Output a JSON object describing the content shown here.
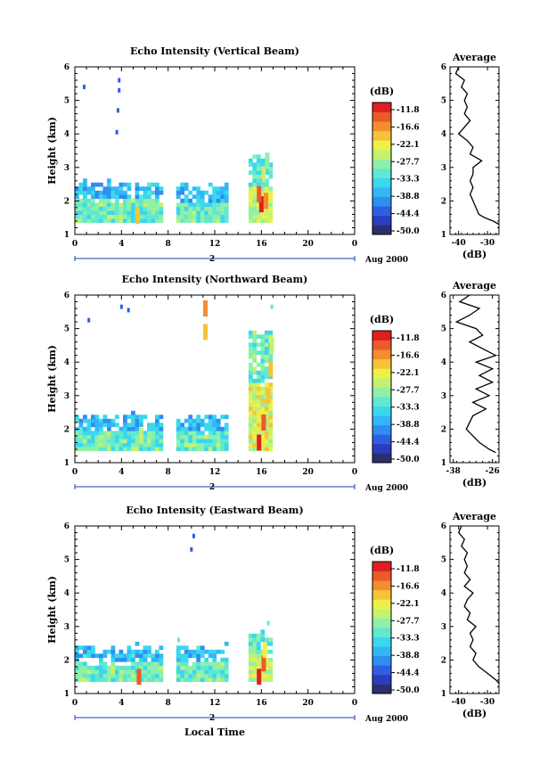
{
  "figure": {
    "xlabel": "Local Time",
    "date_label": "Aug 2000",
    "day_label": "2",
    "colorbar_unit": "(dB)",
    "avg_title": "Average",
    "avg_xlabel": "(dB)"
  },
  "chart_data": [
    {
      "type": "heatmap",
      "title": "Echo Intensity (Vertical Beam)",
      "ylabel": "Height (km)",
      "x_ticks": [
        "0",
        "4",
        "8",
        "12",
        "16",
        "20",
        "0"
      ],
      "x_range": [
        0,
        24
      ],
      "y_ticks": [
        "1",
        "2",
        "3",
        "4",
        "5",
        "6"
      ],
      "y_range": [
        1,
        6
      ],
      "colorbar_levels": [
        "-11.8",
        "-16.6",
        "-22.1",
        "-27.7",
        "-33.3",
        "-38.8",
        "-44.4",
        "-50.0"
      ],
      "colorbar_range_db": [
        -50.0,
        -11.0
      ],
      "data_blocks": [
        {
          "t": [
            0,
            7.3
          ],
          "h": [
            1.35,
            2.55
          ],
          "level_db": -33
        },
        {
          "t": [
            8.7,
            13.0
          ],
          "h": [
            1.35,
            2.5
          ],
          "level_db": -33
        },
        {
          "t": [
            14.9,
            16.8
          ],
          "h": [
            1.35,
            3.3
          ],
          "level_db": -28
        }
      ],
      "cells": [
        {
          "t": 5.4,
          "h": 1.55,
          "db": -22
        },
        {
          "t": 16.0,
          "h": 1.9,
          "db": -12
        },
        {
          "t": 15.8,
          "h": 2.2,
          "db": -14
        },
        {
          "t": 16.4,
          "h": 2.0,
          "db": -18
        },
        {
          "t": 16.2,
          "h": 2.8,
          "db": -27
        },
        {
          "t": 16.5,
          "h": 3.2,
          "db": -30
        }
      ],
      "sparse_cells": [
        {
          "t": 0.8,
          "h": 5.4,
          "db": -44
        },
        {
          "t": 3.8,
          "h": 5.6,
          "db": -44
        },
        {
          "t": 3.8,
          "h": 5.3,
          "db": -44
        },
        {
          "t": 3.7,
          "h": 4.7,
          "db": -44
        },
        {
          "t": 3.6,
          "h": 4.05,
          "db": -44
        }
      ],
      "average_profile": {
        "x_ticks": [
          "-40",
          "-30"
        ],
        "x_range": [
          -43,
          -26
        ],
        "y_ticks": [
          "1",
          "2",
          "3",
          "4",
          "5",
          "6"
        ],
        "y_range": [
          1,
          6
        ],
        "height_km": [
          1.3,
          1.4,
          1.5,
          1.6,
          1.8,
          2.0,
          2.2,
          2.4,
          2.6,
          2.8,
          3.0,
          3.2,
          3.4,
          3.6,
          3.8,
          4.0,
          4.2,
          4.4,
          4.6,
          4.8,
          5.0,
          5.2,
          5.4,
          5.6,
          5.8,
          6.0
        ],
        "db": [
          -26,
          -28,
          -31,
          -33,
          -34,
          -35,
          -36,
          -35,
          -36,
          -35,
          -35,
          -32,
          -36,
          -35,
          -37,
          -40,
          -38,
          -36,
          -38,
          -37,
          -38,
          -37,
          -39,
          -38,
          -41,
          -40
        ]
      }
    },
    {
      "type": "heatmap",
      "title": "Echo Intensity (Northward Beam)",
      "ylabel": "Height (km)",
      "x_ticks": [
        "0",
        "4",
        "8",
        "12",
        "16",
        "20",
        "0"
      ],
      "x_range": [
        0,
        24
      ],
      "y_ticks": [
        "1",
        "2",
        "3",
        "4",
        "5",
        "6"
      ],
      "y_range": [
        1,
        6
      ],
      "colorbar_levels": [
        "-11.8",
        "-16.6",
        "-22.1",
        "-27.7",
        "-33.3",
        "-38.8",
        "-44.4",
        "-50.0"
      ],
      "colorbar_range_db": [
        -50.0,
        -11.0
      ],
      "data_blocks": [
        {
          "t": [
            0,
            7.3
          ],
          "h": [
            1.35,
            2.45
          ],
          "level_db": -33
        },
        {
          "t": [
            8.7,
            13.0
          ],
          "h": [
            1.35,
            2.4
          ],
          "level_db": -33
        },
        {
          "t": [
            14.9,
            16.8
          ],
          "h": [
            1.35,
            4.9
          ],
          "level_db": -27
        }
      ],
      "cells": [
        {
          "t": 5.7,
          "h": 1.8,
          "db": -25
        },
        {
          "t": 15.8,
          "h": 1.6,
          "db": -12
        },
        {
          "t": 16.2,
          "h": 2.2,
          "db": -16
        },
        {
          "t": 16.6,
          "h": 3.0,
          "db": -22
        },
        {
          "t": 16.8,
          "h": 3.8,
          "db": -22
        },
        {
          "t": 16.9,
          "h": 4.5,
          "db": -25
        },
        {
          "t": 11.2,
          "h": 5.6,
          "db": -18
        },
        {
          "t": 11.2,
          "h": 4.9,
          "db": -22
        }
      ],
      "sparse_cells": [
        {
          "t": 1.2,
          "h": 5.25,
          "db": -44
        },
        {
          "t": 4.0,
          "h": 5.65,
          "db": -44
        },
        {
          "t": 4.6,
          "h": 5.55,
          "db": -44
        },
        {
          "t": 16.9,
          "h": 5.65,
          "db": -33
        }
      ],
      "average_profile": {
        "x_ticks": [
          "-38",
          "-26"
        ],
        "x_range": [
          -39,
          -24
        ],
        "y_ticks": [
          "1",
          "2",
          "3",
          "4",
          "5",
          "6"
        ],
        "y_range": [
          1,
          6
        ],
        "height_km": [
          1.3,
          1.4,
          1.6,
          1.8,
          2.0,
          2.2,
          2.4,
          2.6,
          2.8,
          3.0,
          3.2,
          3.4,
          3.6,
          3.8,
          4.0,
          4.2,
          4.4,
          4.6,
          4.8,
          5.0,
          5.2,
          5.4,
          5.6,
          5.8,
          6.0
        ],
        "db": [
          -25,
          -27,
          -30,
          -32,
          -34,
          -33,
          -32,
          -28,
          -32,
          -27,
          -31,
          -26,
          -30,
          -26,
          -31,
          -25,
          -29,
          -33,
          -29,
          -31,
          -37,
          -33,
          -30,
          -36,
          -33
        ]
      }
    },
    {
      "type": "heatmap",
      "title": "Echo Intensity (Eastward Beam)",
      "ylabel": "Height (km)",
      "x_ticks": [
        "0",
        "4",
        "8",
        "12",
        "16",
        "20",
        "0"
      ],
      "x_range": [
        0,
        24
      ],
      "y_ticks": [
        "1",
        "2",
        "3",
        "4",
        "5",
        "6"
      ],
      "y_range": [
        1,
        6
      ],
      "colorbar_levels": [
        "-11.8",
        "-16.6",
        "-22.1",
        "-27.7",
        "-33.3",
        "-38.8",
        "-44.4",
        "-50.0"
      ],
      "colorbar_range_db": [
        -50.0,
        -11.0
      ],
      "data_blocks": [
        {
          "t": [
            0,
            7.3
          ],
          "h": [
            1.35,
            2.4
          ],
          "level_db": -33
        },
        {
          "t": [
            8.7,
            13.0
          ],
          "h": [
            1.35,
            2.4
          ],
          "level_db": -33
        },
        {
          "t": [
            14.9,
            16.8
          ],
          "h": [
            1.35,
            2.8
          ],
          "level_db": -28
        }
      ],
      "cells": [
        {
          "t": 5.5,
          "h": 1.5,
          "db": -14
        },
        {
          "t": 15.8,
          "h": 1.5,
          "db": -12
        },
        {
          "t": 16.2,
          "h": 1.9,
          "db": -16
        },
        {
          "t": 16.3,
          "h": 2.3,
          "db": -24
        }
      ],
      "sparse_cells": [
        {
          "t": 10.2,
          "h": 5.7,
          "db": -44
        },
        {
          "t": 10.0,
          "h": 5.3,
          "db": -44
        },
        {
          "t": 8.9,
          "h": 2.6,
          "db": -33
        },
        {
          "t": 16.6,
          "h": 3.1,
          "db": -33
        }
      ],
      "average_profile": {
        "x_ticks": [
          "-40",
          "-30"
        ],
        "x_range": [
          -43,
          -26
        ],
        "y_ticks": [
          "1",
          "2",
          "3",
          "4",
          "5",
          "6"
        ],
        "y_range": [
          1,
          6
        ],
        "height_km": [
          1.3,
          1.4,
          1.6,
          1.8,
          2.0,
          2.2,
          2.4,
          2.6,
          2.8,
          3.0,
          3.2,
          3.4,
          3.6,
          3.8,
          4.0,
          4.2,
          4.4,
          4.6,
          4.8,
          5.0,
          5.2,
          5.4,
          5.6,
          5.8,
          6.0
        ],
        "db": [
          -26,
          -27,
          -30,
          -33,
          -35,
          -34,
          -36,
          -35,
          -36,
          -34,
          -37,
          -36,
          -38,
          -37,
          -35,
          -38,
          -36,
          -38,
          -37,
          -38,
          -37,
          -39,
          -38,
          -40,
          -39
        ]
      }
    }
  ]
}
